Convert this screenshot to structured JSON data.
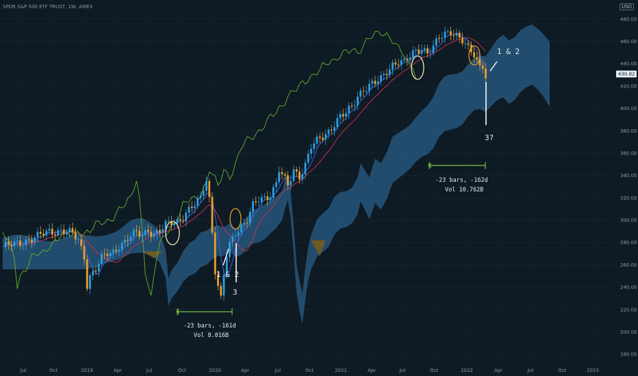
{
  "header": {
    "title": "SPDR S&P 500 ETF TRUST, 1W, AMEX",
    "currency": "USD"
  },
  "chart_data": {
    "type": "candlestick",
    "y_ticks": [
      180,
      200,
      220,
      240,
      260,
      280,
      300,
      320,
      340,
      360,
      380,
      400,
      420,
      440,
      460,
      480
    ],
    "ylim": [
      174,
      486
    ],
    "x_ticks": [
      "Jul",
      "Oct",
      "2019",
      "Apr",
      "Jul",
      "Oct",
      "2020",
      "Apr",
      "Jul",
      "Oct",
      "2021",
      "Apr",
      "Jul",
      "Oct",
      "2022",
      "Apr",
      "Jul",
      "Oct",
      "2023"
    ],
    "last_price": "430.82",
    "annotations": {
      "left_label": "1 & 2",
      "left_three": "3",
      "right_label": "1 & 2",
      "right_three": "3?",
      "range1_line1": "-23 bars, -161d",
      "range1_line2": "Vol 8.016B",
      "range2_line1": "-23 bars, -162d",
      "range2_line2": "Vol 10.762B"
    },
    "colors": {
      "up": "#2f9fe0",
      "down": "#e8a12f",
      "cloud": "#2a5d86",
      "cloud_dark": "#6f5a24",
      "lagging": "#5fa82b",
      "kijun": "#c8304f",
      "tenkan": "#4a5cd8"
    },
    "price_path": [
      [
        0,
        276
      ],
      [
        4,
        278
      ],
      [
        8,
        282
      ],
      [
        12,
        285
      ],
      [
        16,
        290
      ],
      [
        20,
        291
      ],
      [
        24,
        287
      ],
      [
        26,
        282
      ],
      [
        28,
        268
      ],
      [
        29,
        243
      ],
      [
        30,
        250
      ],
      [
        32,
        256
      ],
      [
        34,
        265
      ],
      [
        36,
        270
      ],
      [
        38,
        272
      ],
      [
        40,
        278
      ],
      [
        42,
        280
      ],
      [
        44,
        285
      ],
      [
        46,
        288
      ],
      [
        48,
        288
      ],
      [
        50,
        292
      ],
      [
        52,
        287
      ],
      [
        54,
        289
      ],
      [
        56,
        295
      ],
      [
        58,
        299
      ],
      [
        60,
        300
      ],
      [
        62,
        303
      ],
      [
        64,
        308
      ],
      [
        66,
        313
      ],
      [
        68,
        320
      ],
      [
        69,
        330
      ],
      [
        70,
        338
      ],
      [
        71,
        320
      ],
      [
        72,
        290
      ],
      [
        73,
        255
      ],
      [
        74,
        240
      ],
      [
        75,
        228
      ],
      [
        76,
        250
      ],
      [
        77,
        268
      ],
      [
        78,
        278
      ],
      [
        80,
        290
      ],
      [
        82,
        295
      ],
      [
        84,
        300
      ],
      [
        86,
        312
      ],
      [
        88,
        318
      ],
      [
        90,
        320
      ],
      [
        92,
        324
      ],
      [
        94,
        333
      ],
      [
        95,
        345
      ],
      [
        96,
        340
      ],
      [
        98,
        330
      ],
      [
        100,
        345
      ],
      [
        102,
        340
      ],
      [
        104,
        350
      ],
      [
        106,
        365
      ],
      [
        108,
        370
      ],
      [
        110,
        375
      ],
      [
        112,
        380
      ],
      [
        114,
        387
      ],
      [
        116,
        392
      ],
      [
        118,
        395
      ],
      [
        120,
        401
      ],
      [
        122,
        412
      ],
      [
        124,
        418
      ],
      [
        126,
        420
      ],
      [
        128,
        422
      ],
      [
        130,
        426
      ],
      [
        132,
        434
      ],
      [
        134,
        440
      ],
      [
        136,
        442
      ],
      [
        138,
        440
      ],
      [
        140,
        446
      ],
      [
        142,
        452
      ],
      [
        144,
        455
      ],
      [
        146,
        450
      ],
      [
        148,
        454
      ],
      [
        150,
        462
      ],
      [
        152,
        467
      ],
      [
        154,
        470
      ],
      [
        156,
        466
      ],
      [
        158,
        460
      ],
      [
        160,
        452
      ],
      [
        162,
        448
      ],
      [
        164,
        438
      ],
      [
        165,
        440
      ],
      [
        166,
        430
      ]
    ]
  }
}
